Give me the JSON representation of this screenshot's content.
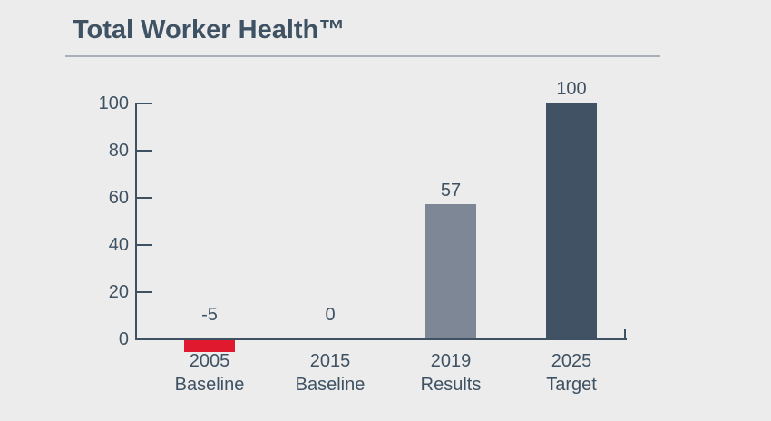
{
  "colors": {
    "background": "#ECECEC",
    "text": "#3F5263",
    "axis": "#3F5263",
    "divider": "#A9B0B7"
  },
  "chart_data": {
    "type": "bar",
    "title": "Total Worker Health™",
    "categories": [
      "2005 Baseline",
      "2015 Baseline",
      "2019 Results",
      "2025 Target"
    ],
    "category_lines": [
      [
        "2005",
        "Baseline"
      ],
      [
        "2015",
        "Baseline"
      ],
      [
        "2019",
        "Results"
      ],
      [
        "2025",
        "Target"
      ]
    ],
    "values": [
      -5,
      0,
      57,
      100
    ],
    "data_labels": [
      "-5",
      "0",
      "57",
      "100"
    ],
    "bar_colors": [
      "#E0192E",
      null,
      "#7E8795",
      "#415264"
    ],
    "ylim": [
      0,
      100
    ],
    "yticks": [
      0,
      20,
      40,
      60,
      80,
      100
    ],
    "xlabel": "",
    "ylabel": "",
    "grid": false,
    "legend": null
  }
}
